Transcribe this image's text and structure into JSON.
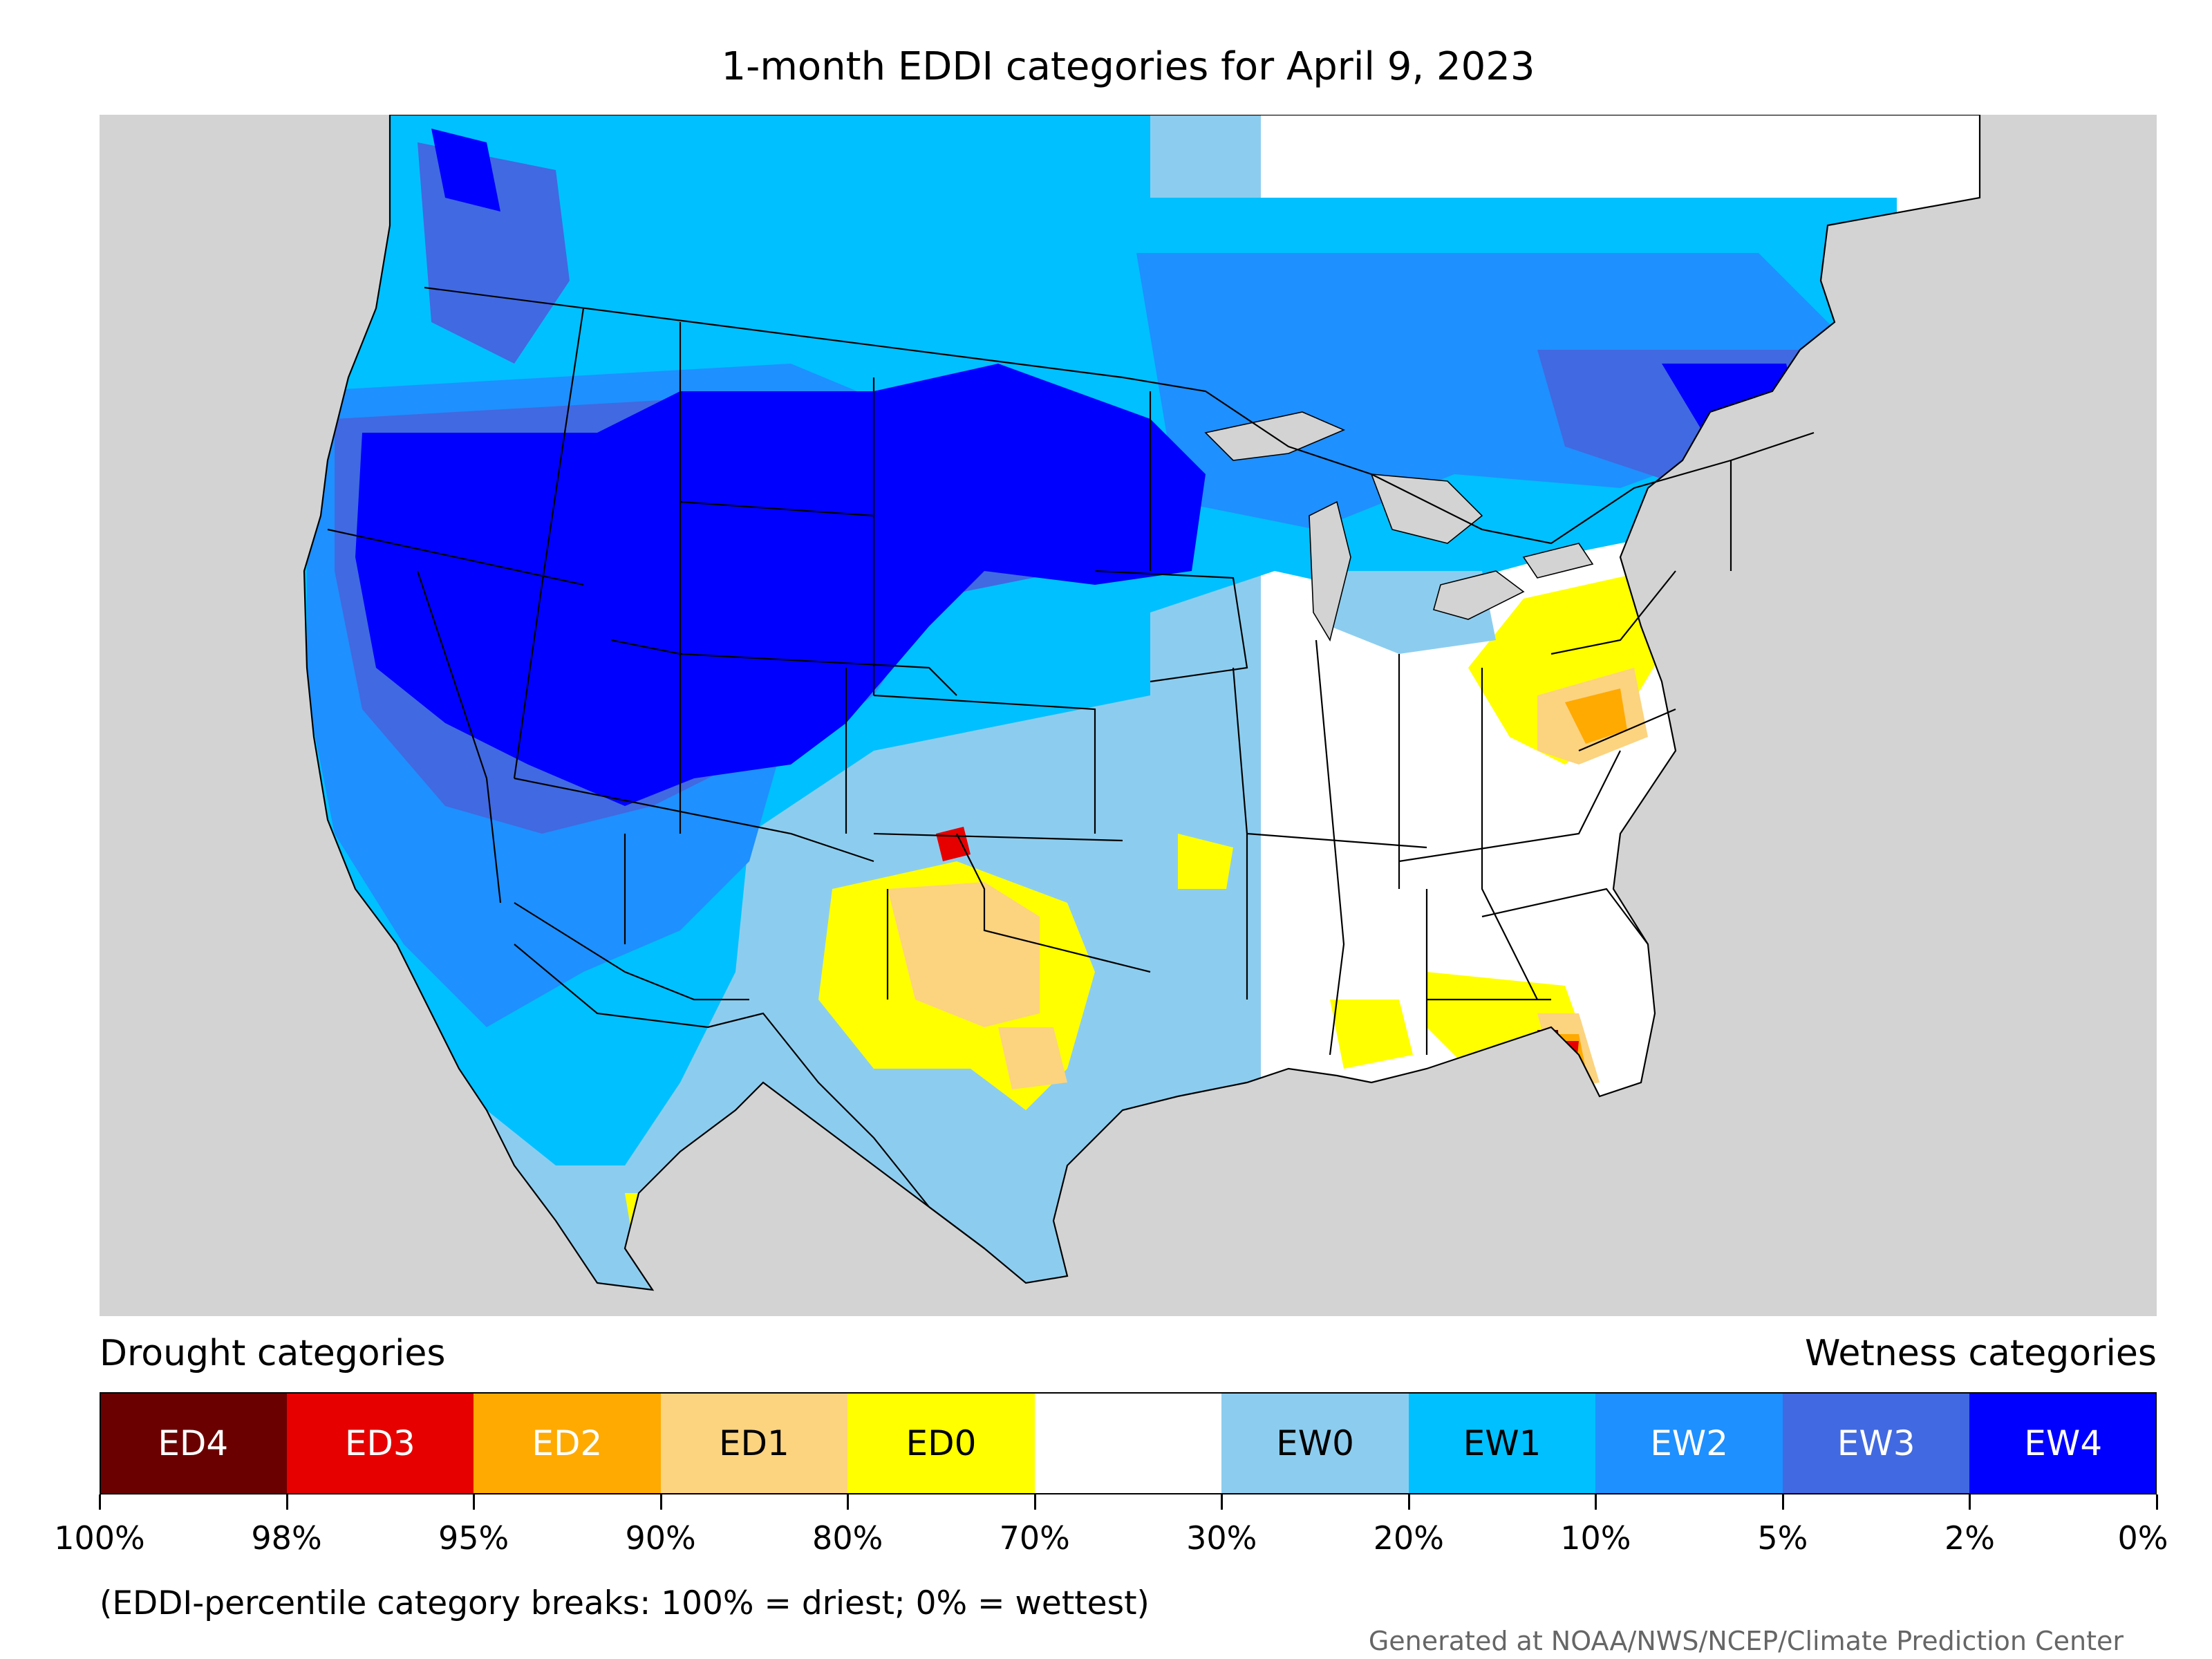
{
  "title": "1-month EDDI categories for April 9, 2023",
  "map": {
    "background_color": "#d3d3d3",
    "boundary_color": "#000000"
  },
  "legend": {
    "drought_caption": "Drought categories",
    "wetness_caption": "Wetness categories",
    "categories": [
      {
        "label": "ED4",
        "color": "#6b0000",
        "text_color": "#ffffff"
      },
      {
        "label": "ED3",
        "color": "#e60000",
        "text_color": "#ffffff"
      },
      {
        "label": "ED2",
        "color": "#ffaa00",
        "text_color": "#ffffff"
      },
      {
        "label": "ED1",
        "color": "#fcd37f",
        "text_color": "#000000"
      },
      {
        "label": "ED0",
        "color": "#ffff00",
        "text_color": "#000000"
      },
      {
        "label": "",
        "color": "#ffffff",
        "text_color": "#000000"
      },
      {
        "label": "EW0",
        "color": "#8ccdef",
        "text_color": "#000000"
      },
      {
        "label": "EW1",
        "color": "#00c0ff",
        "text_color": "#000000"
      },
      {
        "label": "EW2",
        "color": "#1e90ff",
        "text_color": "#ffffff"
      },
      {
        "label": "EW3",
        "color": "#4169e1",
        "text_color": "#ffffff"
      },
      {
        "label": "EW4",
        "color": "#0000ff",
        "text_color": "#ffffff"
      }
    ],
    "breaks": [
      "100%",
      "98%",
      "95%",
      "90%",
      "80%",
      "70%",
      "30%",
      "20%",
      "10%",
      "5%",
      "2%",
      "0%"
    ]
  },
  "note": "(EDDI-percentile category breaks: 100% = driest; 0% = wettest)",
  "credit": "Generated at NOAA/NWS/NCEP/Climate Prediction Center"
}
